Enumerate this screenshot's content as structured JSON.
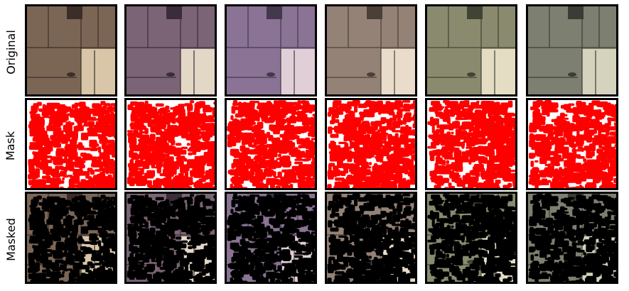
{
  "rows": [
    {
      "label": "Original",
      "kind": "original"
    },
    {
      "label": "Mask",
      "kind": "mask"
    },
    {
      "label": "Masked",
      "kind": "masked"
    }
  ],
  "columns": [
    {
      "tint": "#7b6656",
      "light_tint": "#d9c6a8",
      "dark": "#3b2e28"
    },
    {
      "tint": "#7b6476",
      "light_tint": "#e3d7c6",
      "dark": "#3a2c38"
    },
    {
      "tint": "#8a7394",
      "light_tint": "#e0cfd6",
      "dark": "#43384d"
    },
    {
      "tint": "#948277",
      "light_tint": "#e9dccb",
      "dark": "#4a4038"
    },
    {
      "tint": "#8a8b6e",
      "light_tint": "#e4dcc3",
      "dark": "#3f4434"
    },
    {
      "tint": "#7d7f70",
      "light_tint": "#d5d2bd",
      "dark": "#3a3d36"
    }
  ],
  "colors": {
    "mask_fill": "#ff0000",
    "mask_bg": "#ffffff",
    "masked_fill": "#000000",
    "border": "#000000"
  }
}
